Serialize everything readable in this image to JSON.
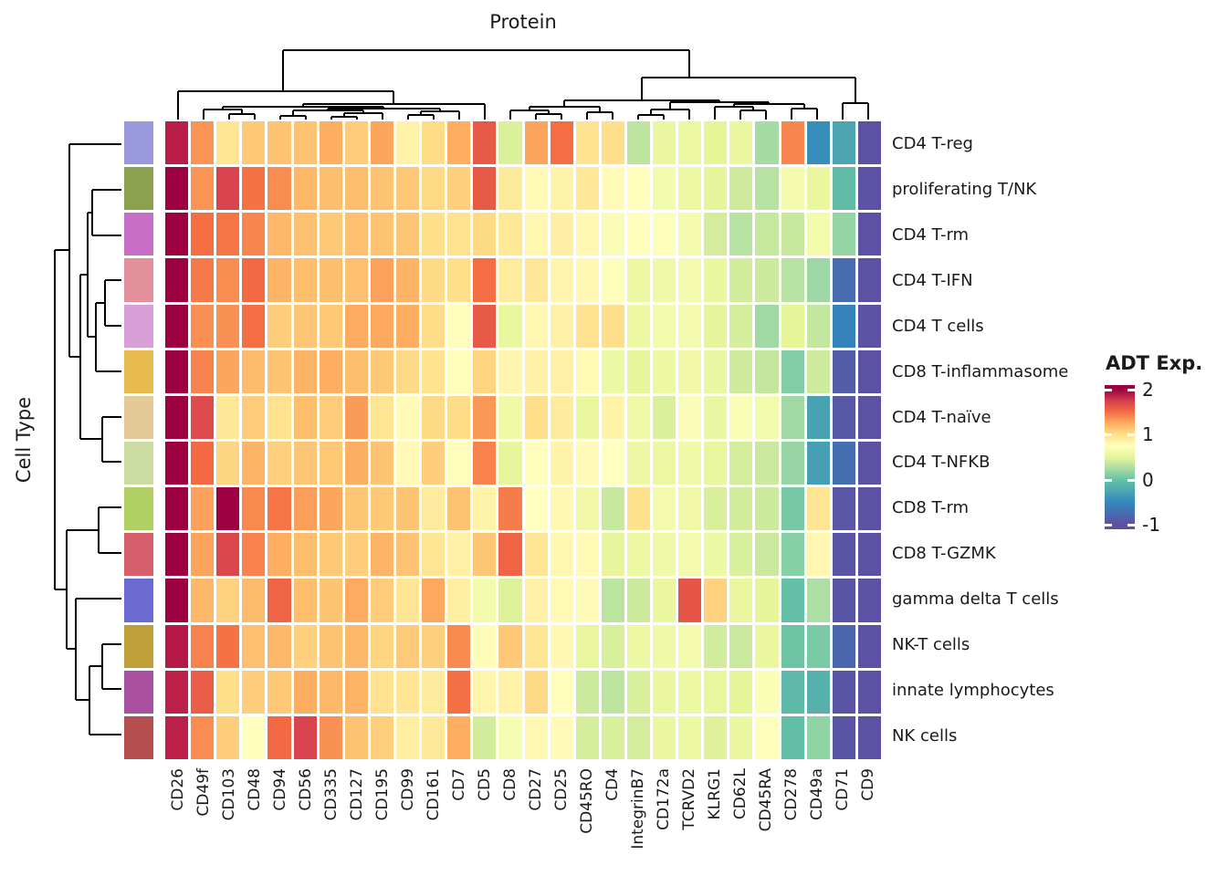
{
  "figure": {
    "title": "Protein",
    "row_axis_label": "Cell Type"
  },
  "legend": {
    "title": "ADT Exp.",
    "ticks": [
      {
        "label": "2",
        "value": 2
      },
      {
        "label": "1",
        "value": 1
      },
      {
        "label": "0",
        "value": 0
      },
      {
        "label": "-1",
        "value": -1
      }
    ],
    "domain_top": 2.1,
    "domain_bottom": -1.1
  },
  "chart_data": {
    "type": "heatmap",
    "title": "Protein",
    "xlabel": "Protein",
    "ylabel": "Cell Type",
    "legend_title": "ADT Exp.",
    "columns": [
      "CD26",
      "CD49f",
      "CD103",
      "CD48",
      "CD94",
      "CD56",
      "CD335",
      "CD127",
      "CD195",
      "CD99",
      "CD161",
      "CD7",
      "CD5",
      "CD8",
      "CD27",
      "CD25",
      "CD45RO",
      "CD4",
      "IntegrinB7",
      "CD172a",
      "TCRVD2",
      "KLRG1",
      "CD62L",
      "CD45RA",
      "CD278",
      "CD49a",
      "CD71",
      "CD9"
    ],
    "rows": [
      "CD4 T-reg",
      "proliferating T/NK",
      "CD4 T-rm",
      "CD4 T-IFN",
      "CD4 T cells",
      "CD8 T-inflammasome",
      "CD4 T-naïve",
      "CD4 T-NFKB",
      "CD8 T-rm",
      "CD8 T-GZMK",
      "gamma delta T cells",
      "NK-T cells",
      "innate lymphocytes",
      "NK cells"
    ],
    "row_annotation_colors": [
      "#9A99DD",
      "#8BA14F",
      "#C76FC6",
      "#E2919B",
      "#D9A0D8",
      "#E7BA50",
      "#E4CA97",
      "#CBDCA2",
      "#AFCE64",
      "#D5606C",
      "#6C6BD2",
      "#BF9F38",
      "#AB50A0",
      "#B54F4F"
    ],
    "values": [
      [
        1.88,
        1.35,
        0.95,
        1.12,
        1.15,
        1.15,
        1.25,
        1.1,
        1.28,
        0.85,
        1.02,
        1.25,
        1.6,
        0.45,
        1.28,
        1.5,
        0.97,
        1.0,
        0.33,
        0.54,
        0.56,
        0.5,
        0.55,
        0.23,
        1.4,
        -0.45,
        -0.25,
        -0.97
      ],
      [
        2.05,
        1.35,
        1.72,
        1.48,
        1.38,
        1.2,
        1.17,
        1.17,
        1.15,
        1.12,
        1.03,
        1.08,
        1.6,
        0.92,
        0.8,
        0.85,
        0.94,
        0.78,
        0.76,
        0.62,
        0.56,
        0.51,
        0.4,
        0.3,
        0.64,
        0.54,
        -0.05,
        -0.97
      ],
      [
        2.05,
        1.5,
        1.47,
        1.4,
        1.2,
        1.16,
        1.12,
        1.16,
        1.15,
        1.13,
        1.0,
        0.98,
        1.03,
        0.94,
        0.82,
        0.88,
        0.81,
        0.68,
        0.76,
        0.72,
        0.64,
        0.42,
        0.3,
        0.36,
        0.37,
        0.62,
        0.17,
        -0.97
      ],
      [
        2.05,
        1.45,
        1.38,
        1.52,
        1.22,
        1.17,
        1.17,
        1.16,
        1.3,
        1.22,
        1.03,
        1.0,
        1.5,
        0.91,
        0.94,
        0.83,
        0.81,
        0.72,
        0.57,
        0.6,
        0.64,
        0.54,
        0.41,
        0.39,
        0.3,
        0.2,
        -0.75,
        -0.97
      ],
      [
        2.05,
        1.37,
        1.36,
        1.5,
        1.09,
        1.13,
        1.12,
        1.26,
        1.27,
        1.25,
        1.02,
        0.77,
        1.6,
        0.54,
        0.82,
        0.86,
        0.98,
        1.0,
        0.57,
        0.62,
        0.64,
        0.51,
        0.43,
        0.21,
        0.5,
        0.35,
        -0.55,
        -0.97
      ],
      [
        2.05,
        1.42,
        1.28,
        1.18,
        1.15,
        1.22,
        1.25,
        1.17,
        1.12,
        1.03,
        0.97,
        0.77,
        1.06,
        0.83,
        0.86,
        0.87,
        0.8,
        0.57,
        0.52,
        0.57,
        0.61,
        0.55,
        0.4,
        0.35,
        0.1,
        0.4,
        -0.87,
        -0.97
      ],
      [
        2.0,
        1.68,
        0.94,
        1.1,
        0.98,
        1.17,
        1.1,
        1.32,
        0.96,
        0.79,
        1.03,
        1.02,
        1.33,
        0.59,
        1.01,
        0.91,
        0.54,
        0.85,
        0.59,
        0.45,
        0.7,
        0.55,
        0.68,
        0.62,
        0.21,
        -0.28,
        -0.92,
        -0.97
      ],
      [
        2.05,
        1.52,
        1.05,
        1.22,
        1.08,
        1.13,
        1.12,
        1.24,
        1.15,
        0.8,
        1.09,
        0.77,
        1.42,
        0.52,
        0.76,
        0.85,
        0.79,
        0.75,
        0.58,
        0.56,
        0.6,
        0.53,
        0.42,
        0.38,
        0.18,
        -0.3,
        -0.72,
        -0.97
      ],
      [
        2.05,
        1.3,
        2.05,
        1.39,
        1.47,
        1.31,
        1.28,
        1.13,
        1.12,
        1.14,
        0.91,
        1.15,
        0.85,
        1.44,
        0.75,
        0.81,
        0.61,
        0.37,
        0.99,
        0.63,
        0.61,
        0.44,
        0.41,
        0.39,
        0.06,
        0.96,
        -0.95,
        -0.97
      ],
      [
        2.05,
        1.29,
        1.7,
        1.42,
        1.25,
        1.17,
        1.12,
        1.09,
        1.22,
        1.15,
        0.96,
        0.87,
        1.13,
        1.55,
        0.96,
        0.82,
        0.8,
        0.52,
        0.57,
        0.6,
        0.63,
        0.57,
        0.44,
        0.38,
        0.12,
        0.82,
        -0.96,
        -0.97
      ],
      [
        2.05,
        1.2,
        1.07,
        1.18,
        1.55,
        1.17,
        1.14,
        1.26,
        1.1,
        0.95,
        1.27,
        0.89,
        0.62,
        0.46,
        0.86,
        0.8,
        0.79,
        0.32,
        0.39,
        0.54,
        1.62,
        1.07,
        0.54,
        0.51,
        -0.02,
        0.26,
        -0.96,
        -0.97
      ],
      [
        1.9,
        1.42,
        1.48,
        1.16,
        1.2,
        1.08,
        1.15,
        1.2,
        1.06,
        1.11,
        1.08,
        1.39,
        0.78,
        1.12,
        0.95,
        0.81,
        0.53,
        0.44,
        0.57,
        0.6,
        0.63,
        0.41,
        0.38,
        0.54,
        0.02,
        0.07,
        -0.8,
        -0.97
      ],
      [
        1.87,
        1.58,
        1.0,
        1.09,
        1.12,
        1.25,
        1.2,
        1.23,
        0.98,
        0.95,
        0.91,
        1.49,
        0.84,
        0.85,
        1.03,
        0.77,
        0.39,
        0.33,
        0.44,
        0.55,
        0.57,
        0.53,
        0.5,
        0.69,
        -0.08,
        -0.15,
        -0.96,
        -0.97
      ],
      [
        1.87,
        1.38,
        1.09,
        0.76,
        1.52,
        1.72,
        1.36,
        1.15,
        1.08,
        0.89,
        0.93,
        1.25,
        0.41,
        0.67,
        0.81,
        0.79,
        0.43,
        0.44,
        0.42,
        0.55,
        0.57,
        0.47,
        0.55,
        0.73,
        -0.04,
        0.16,
        -0.96,
        -0.97
      ]
    ],
    "colormap_stops": [
      [
        -1.1,
        "#5E4FA2"
      ],
      [
        -1.0,
        "#5E4FA2"
      ],
      [
        -0.5,
        "#3288BD"
      ],
      [
        0.0,
        "#66C2A5"
      ],
      [
        0.25,
        "#ABDDA4"
      ],
      [
        0.5,
        "#E6F598"
      ],
      [
        0.75,
        "#FFFFBF"
      ],
      [
        1.0,
        "#FEE08B"
      ],
      [
        1.25,
        "#FDAE61"
      ],
      [
        1.5,
        "#F46D43"
      ],
      [
        1.75,
        "#D53E4F"
      ],
      [
        2.0,
        "#9E0142"
      ],
      [
        2.1,
        "#9E0142"
      ]
    ],
    "grid_color": "#FFFFFF",
    "dendrogram_color": "#000000",
    "col_dendrogram_segments": [
      [
        310,
        55,
        755,
        55
      ],
      [
        310,
        55,
        310,
        100
      ],
      [
        755,
        55,
        755,
        85
      ],
      [
        703,
        85,
        937,
        85
      ],
      [
        703,
        85,
        703,
        110
      ],
      [
        937,
        85,
        937,
        113
      ],
      [
        923,
        113,
        951,
        113
      ],
      [
        923,
        113,
        923,
        131
      ],
      [
        951,
        113,
        951,
        131
      ],
      [
        618,
        110,
        788,
        110
      ],
      [
        618,
        110,
        618,
        117
      ],
      [
        788,
        110,
        788,
        112
      ],
      [
        734,
        112,
        842,
        112
      ],
      [
        734,
        112,
        734,
        120
      ],
      [
        842,
        112,
        842,
        114
      ],
      [
        804,
        114,
        881,
        114
      ],
      [
        804,
        114,
        804,
        117
      ],
      [
        881,
        114,
        881,
        119
      ],
      [
        867,
        119,
        895,
        119
      ],
      [
        867,
        119,
        867,
        131
      ],
      [
        895,
        119,
        895,
        131
      ],
      [
        783,
        117,
        825,
        117
      ],
      [
        783,
        117,
        783,
        131
      ],
      [
        825,
        117,
        825,
        121
      ],
      [
        811,
        121,
        839,
        121
      ],
      [
        811,
        121,
        811,
        131
      ],
      [
        839,
        121,
        839,
        131
      ],
      [
        713,
        120,
        755,
        120
      ],
      [
        713,
        120,
        713,
        126
      ],
      [
        755,
        120,
        755,
        131
      ],
      [
        699,
        126,
        727,
        126
      ],
      [
        699,
        126,
        699,
        131
      ],
      [
        727,
        126,
        727,
        131
      ],
      [
        580,
        117,
        657,
        117
      ],
      [
        580,
        117,
        580,
        121
      ],
      [
        657,
        117,
        657,
        123
      ],
      [
        643,
        123,
        671,
        123
      ],
      [
        643,
        123,
        643,
        131
      ],
      [
        671,
        123,
        671,
        131
      ],
      [
        559,
        121,
        601,
        121
      ],
      [
        559,
        121,
        559,
        131
      ],
      [
        601,
        121,
        601,
        125
      ],
      [
        587,
        125,
        615,
        125
      ],
      [
        587,
        125,
        587,
        131
      ],
      [
        615,
        125,
        615,
        131
      ],
      [
        195,
        100,
        431,
        100
      ],
      [
        195,
        100,
        195,
        131
      ],
      [
        431,
        100,
        431,
        114
      ],
      [
        332,
        114,
        531,
        114
      ],
      [
        332,
        114,
        332,
        117
      ],
      [
        531,
        114,
        531,
        131
      ],
      [
        244,
        117,
        420,
        117
      ],
      [
        244,
        117,
        244,
        120
      ],
      [
        420,
        117,
        420,
        119
      ],
      [
        359,
        119,
        482,
        119
      ],
      [
        359,
        119,
        359,
        121
      ],
      [
        482,
        119,
        482,
        122
      ],
      [
        461,
        122,
        503,
        122
      ],
      [
        461,
        122,
        461,
        126
      ],
      [
        503,
        122,
        503,
        131
      ],
      [
        447,
        126,
        475,
        126
      ],
      [
        447,
        126,
        447,
        131
      ],
      [
        475,
        126,
        475,
        131
      ],
      [
        321,
        121,
        398,
        121
      ],
      [
        321,
        121,
        321,
        127
      ],
      [
        398,
        121,
        398,
        124
      ],
      [
        377,
        124,
        419,
        124
      ],
      [
        377,
        124,
        377,
        128
      ],
      [
        419,
        124,
        419,
        131
      ],
      [
        363,
        128,
        391,
        128
      ],
      [
        363,
        128,
        363,
        131
      ],
      [
        391,
        128,
        391,
        131
      ],
      [
        307,
        127,
        335,
        127
      ],
      [
        307,
        127,
        307,
        131
      ],
      [
        335,
        127,
        335,
        131
      ],
      [
        223,
        120,
        265,
        120
      ],
      [
        223,
        120,
        223,
        131
      ],
      [
        265,
        120,
        265,
        125
      ],
      [
        251,
        125,
        279,
        125
      ],
      [
        251,
        125,
        251,
        131
      ],
      [
        279,
        125,
        279,
        131
      ]
    ],
    "row_dendrogram_segments": [
      [
        60,
        274,
        60,
        646
      ],
      [
        60,
        274,
        76,
        274
      ],
      [
        60,
        646,
        73,
        646
      ],
      [
        76,
        158,
        76,
        391
      ],
      [
        76,
        158,
        133,
        158
      ],
      [
        76,
        391,
        88,
        391
      ],
      [
        88,
        301,
        88,
        481
      ],
      [
        88,
        301,
        96,
        301
      ],
      [
        88,
        481,
        112,
        481
      ],
      [
        96,
        233,
        96,
        369
      ],
      [
        96,
        233,
        101,
        233
      ],
      [
        96,
        369,
        105,
        369
      ],
      [
        101,
        208,
        101,
        258
      ],
      [
        101,
        208,
        133,
        208
      ],
      [
        101,
        258,
        133,
        258
      ],
      [
        105,
        332,
        105,
        407
      ],
      [
        105,
        332,
        115,
        332
      ],
      [
        105,
        407,
        133,
        407
      ],
      [
        115,
        307,
        115,
        357
      ],
      [
        115,
        307,
        133,
        307
      ],
      [
        115,
        357,
        133,
        357
      ],
      [
        112,
        457,
        112,
        506
      ],
      [
        112,
        457,
        133,
        457
      ],
      [
        112,
        506,
        133,
        506
      ],
      [
        108,
        556,
        108,
        606
      ],
      [
        108,
        556,
        133,
        556
      ],
      [
        108,
        606,
        133,
        606
      ],
      [
        73,
        581,
        73,
        711
      ],
      [
        73,
        581,
        108,
        581
      ],
      [
        73,
        711,
        83,
        711
      ],
      [
        83,
        656,
        83,
        767
      ],
      [
        83,
        656,
        133,
        656
      ],
      [
        83,
        767,
        98,
        767
      ],
      [
        98,
        730,
        98,
        805
      ],
      [
        98,
        730,
        112,
        730
      ],
      [
        98,
        805,
        133,
        805
      ],
      [
        112,
        706,
        112,
        755
      ],
      [
        112,
        706,
        133,
        706
      ],
      [
        112,
        755,
        133,
        755
      ]
    ]
  }
}
